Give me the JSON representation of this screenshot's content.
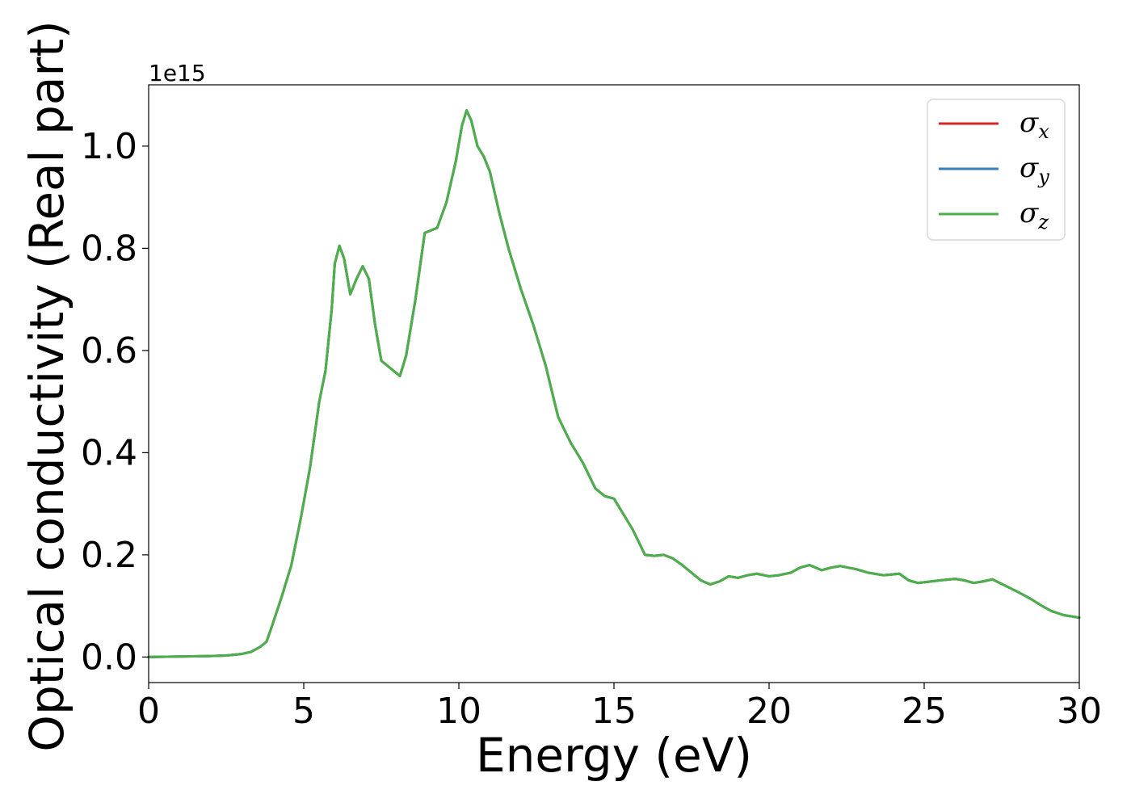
{
  "chart_data": {
    "type": "line",
    "title": "",
    "xlabel": "Energy (eV)",
    "ylabel": "Optical conductivity (Real part)",
    "y_offset_text": "1e15",
    "xlim": [
      0,
      30
    ],
    "ylim": [
      -0.05,
      1.12
    ],
    "x_ticks": [
      0,
      5,
      10,
      15,
      20,
      25,
      30
    ],
    "x_tick_labels": [
      "0",
      "5",
      "10",
      "15",
      "20",
      "25",
      "30"
    ],
    "y_ticks": [
      0.0,
      0.2,
      0.4,
      0.6,
      0.8,
      1.0
    ],
    "y_tick_labels": [
      "0.0",
      "0.2",
      "0.4",
      "0.6",
      "0.8",
      "1.0"
    ],
    "grid": false,
    "legend_position": "top-right",
    "x": [
      0,
      1,
      2,
      2.5,
      3,
      3.3,
      3.6,
      3.8,
      4.0,
      4.3,
      4.6,
      4.9,
      5.2,
      5.5,
      5.7,
      5.9,
      6.0,
      6.15,
      6.3,
      6.5,
      6.7,
      6.9,
      7.1,
      7.3,
      7.5,
      7.7,
      7.9,
      8.1,
      8.3,
      8.6,
      8.9,
      9.1,
      9.3,
      9.6,
      9.9,
      10.1,
      10.25,
      10.4,
      10.6,
      10.8,
      11.0,
      11.3,
      11.6,
      12.0,
      12.4,
      12.8,
      13.2,
      13.6,
      14.0,
      14.4,
      14.7,
      15.0,
      15.3,
      15.6,
      16.0,
      16.3,
      16.6,
      16.9,
      17.2,
      17.5,
      17.8,
      18.1,
      18.4,
      18.7,
      19.0,
      19.3,
      19.6,
      20.0,
      20.3,
      20.7,
      21.0,
      21.3,
      21.7,
      22.0,
      22.3,
      22.8,
      23.2,
      23.7,
      24.2,
      24.5,
      24.8,
      25.1,
      25.5,
      26.0,
      26.3,
      26.6,
      26.9,
      27.2,
      27.6,
      28.0,
      28.4,
      28.8,
      29.1,
      29.5,
      30.0
    ],
    "series": [
      {
        "name": "σx",
        "color": "#d62728",
        "values": [
          0.0,
          0.001,
          0.002,
          0.003,
          0.006,
          0.01,
          0.02,
          0.03,
          0.065,
          0.12,
          0.18,
          0.27,
          0.37,
          0.5,
          0.56,
          0.68,
          0.77,
          0.805,
          0.78,
          0.71,
          0.74,
          0.765,
          0.74,
          0.65,
          0.58,
          0.57,
          0.56,
          0.55,
          0.59,
          0.7,
          0.83,
          0.835,
          0.84,
          0.89,
          0.97,
          1.04,
          1.07,
          1.05,
          1.0,
          0.98,
          0.95,
          0.87,
          0.8,
          0.72,
          0.65,
          0.57,
          0.47,
          0.42,
          0.38,
          0.33,
          0.315,
          0.31,
          0.28,
          0.25,
          0.2,
          0.198,
          0.2,
          0.193,
          0.18,
          0.165,
          0.15,
          0.142,
          0.148,
          0.158,
          0.155,
          0.16,
          0.163,
          0.158,
          0.16,
          0.165,
          0.175,
          0.18,
          0.17,
          0.175,
          0.178,
          0.172,
          0.165,
          0.16,
          0.163,
          0.15,
          0.145,
          0.147,
          0.15,
          0.153,
          0.15,
          0.145,
          0.148,
          0.152,
          0.14,
          0.128,
          0.115,
          0.1,
          0.09,
          0.082,
          0.077
        ]
      },
      {
        "name": "σy",
        "color": "#377eb8",
        "values": [
          0.0,
          0.001,
          0.002,
          0.003,
          0.006,
          0.01,
          0.02,
          0.03,
          0.065,
          0.12,
          0.18,
          0.27,
          0.37,
          0.5,
          0.56,
          0.68,
          0.77,
          0.805,
          0.78,
          0.71,
          0.74,
          0.765,
          0.74,
          0.65,
          0.58,
          0.57,
          0.56,
          0.55,
          0.59,
          0.7,
          0.83,
          0.835,
          0.84,
          0.89,
          0.97,
          1.04,
          1.07,
          1.05,
          1.0,
          0.98,
          0.95,
          0.87,
          0.8,
          0.72,
          0.65,
          0.57,
          0.47,
          0.42,
          0.38,
          0.33,
          0.315,
          0.31,
          0.28,
          0.25,
          0.2,
          0.198,
          0.2,
          0.193,
          0.18,
          0.165,
          0.15,
          0.142,
          0.148,
          0.158,
          0.155,
          0.16,
          0.163,
          0.158,
          0.16,
          0.165,
          0.175,
          0.18,
          0.17,
          0.175,
          0.178,
          0.172,
          0.165,
          0.16,
          0.163,
          0.15,
          0.145,
          0.147,
          0.15,
          0.153,
          0.15,
          0.145,
          0.148,
          0.152,
          0.14,
          0.128,
          0.115,
          0.1,
          0.09,
          0.082,
          0.077
        ]
      },
      {
        "name": "σz",
        "color": "#4daf4a",
        "values": [
          0.0,
          0.001,
          0.002,
          0.003,
          0.006,
          0.01,
          0.02,
          0.03,
          0.065,
          0.12,
          0.18,
          0.27,
          0.37,
          0.5,
          0.56,
          0.68,
          0.77,
          0.805,
          0.78,
          0.71,
          0.74,
          0.765,
          0.74,
          0.65,
          0.58,
          0.57,
          0.56,
          0.55,
          0.59,
          0.7,
          0.83,
          0.835,
          0.84,
          0.89,
          0.97,
          1.04,
          1.07,
          1.05,
          1.0,
          0.98,
          0.95,
          0.87,
          0.8,
          0.72,
          0.65,
          0.57,
          0.47,
          0.42,
          0.38,
          0.33,
          0.315,
          0.31,
          0.28,
          0.25,
          0.2,
          0.198,
          0.2,
          0.193,
          0.18,
          0.165,
          0.15,
          0.142,
          0.148,
          0.158,
          0.155,
          0.16,
          0.163,
          0.158,
          0.16,
          0.165,
          0.175,
          0.18,
          0.17,
          0.175,
          0.178,
          0.172,
          0.165,
          0.16,
          0.163,
          0.15,
          0.145,
          0.147,
          0.15,
          0.153,
          0.15,
          0.145,
          0.148,
          0.152,
          0.14,
          0.128,
          0.115,
          0.1,
          0.09,
          0.082,
          0.077
        ]
      }
    ],
    "legend": [
      {
        "symbol": "σ",
        "sub": "x",
        "color": "#d62728"
      },
      {
        "symbol": "σ",
        "sub": "y",
        "color": "#377eb8"
      },
      {
        "symbol": "σ",
        "sub": "z",
        "color": "#4daf4a"
      }
    ]
  }
}
